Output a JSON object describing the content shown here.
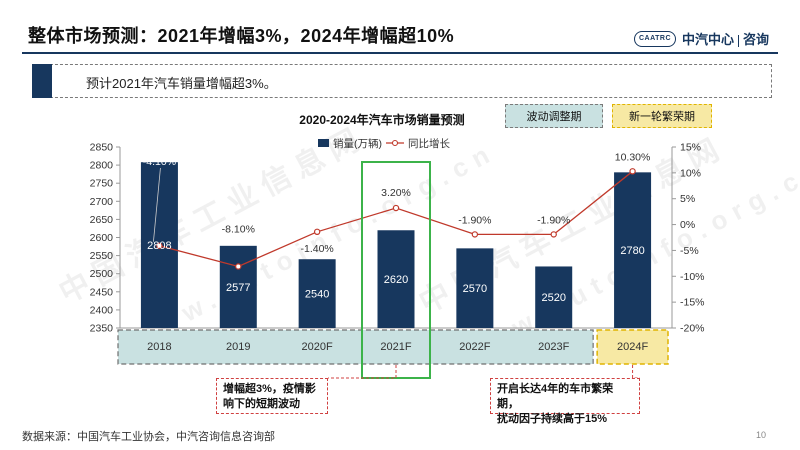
{
  "header": {
    "title": "整体市场预测：2021年增幅3%，2024年增幅超10%",
    "logo_badge": "CAATRC",
    "logo_text_left": "中汽中心",
    "logo_text_right": "咨询"
  },
  "summary": {
    "text": "预计2021年汽车销量增幅超3%。"
  },
  "legend_boxes": {
    "fluctuation": "波动调整期",
    "prosperity": "新一轮繁荣期"
  },
  "notes": {
    "note_2021": [
      "增幅超3%，疫情影",
      "响下的短期波动"
    ],
    "note_2024": [
      "开启长达4年的车市繁荣期，",
      "扰动因子持续高于15%"
    ]
  },
  "footer": {
    "source": "数据来源：中国汽车工业协会，中汽咨询信息咨询部",
    "page_number": "10"
  },
  "watermark": [
    "中国汽车工业信息网",
    "www.autoinfo.org.cn"
  ],
  "chart_data": {
    "type": "bar+line",
    "title": "2020-2024年汽车市场销量预测",
    "categories": [
      "2018",
      "2019",
      "2020F",
      "2021F",
      "2022F",
      "2023F",
      "2024F"
    ],
    "series": [
      {
        "name": "销量(万辆)",
        "type": "bar",
        "axis": "left",
        "values": [
          2808,
          2577,
          2540,
          2620,
          2570,
          2520,
          2780
        ],
        "value_labels": [
          "2808",
          "2577",
          "2540",
          "2620",
          "2570",
          "2520",
          "2780"
        ]
      },
      {
        "name": "同比增长",
        "type": "line",
        "axis": "right",
        "values": [
          -4.1,
          -8.1,
          -1.4,
          3.2,
          -1.9,
          -1.9,
          10.3
        ],
        "value_labels": [
          "-4.10%",
          "-8.10%",
          "-1.40%",
          "3.20%",
          "-1.90%",
          "-1.90%",
          "10.30%"
        ]
      }
    ],
    "y_left": {
      "min": 2350,
      "max": 2850,
      "step": 50,
      "ticks": [
        "2350",
        "2400",
        "2450",
        "2500",
        "2550",
        "2600",
        "2650",
        "2700",
        "2750",
        "2800",
        "2850"
      ]
    },
    "y_right": {
      "min": -20,
      "max": 15,
      "step": 5,
      "ticks": [
        "-20%",
        "-15%",
        "-10%",
        "-5%",
        "0%",
        "5%",
        "10%",
        "15%"
      ]
    },
    "legend_position": "top-center",
    "grid": false,
    "colors": {
      "bar": "#17375e",
      "line": "#c0392b",
      "fluctuation_band": "#c9e1e1",
      "prosperity_band": "#f7e9a4",
      "highlight_2021": "#3cb34a"
    }
  }
}
